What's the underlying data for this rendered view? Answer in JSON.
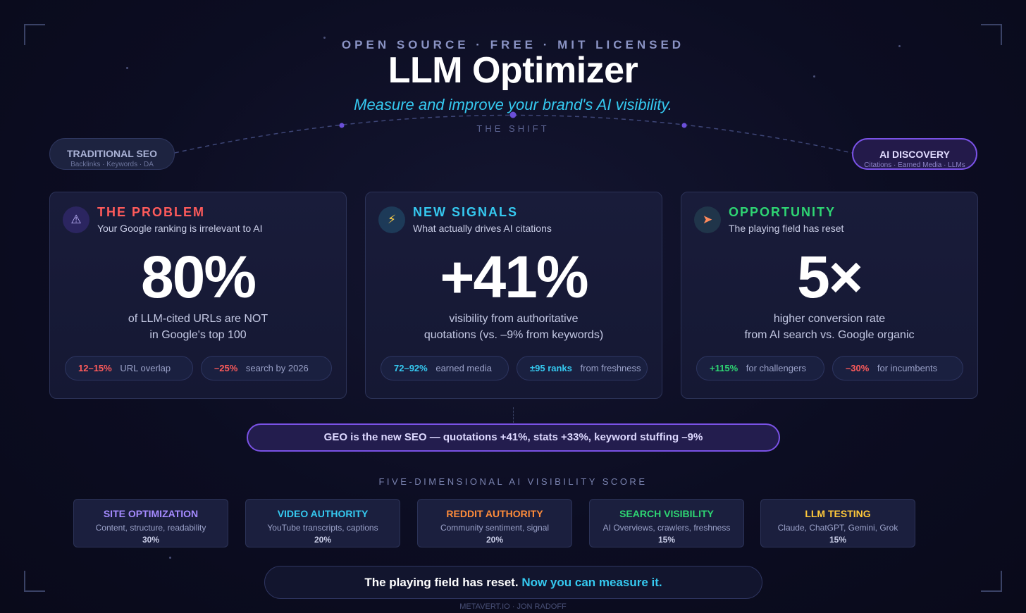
{
  "header": {
    "kicker": "OPEN SOURCE · FREE · MIT LICENSED",
    "title": "LLM Optimizer",
    "tagline": "Measure and improve your brand's AI visibility.",
    "shift_label": "THE SHIFT"
  },
  "shift": {
    "from": {
      "title": "TRADITIONAL SEO",
      "subtitle": "Backlinks · Keywords · DA"
    },
    "to": {
      "title": "AI DISCOVERY",
      "subtitle": "Citations · Earned Media · LLMs"
    }
  },
  "cards": [
    {
      "icon": "warning-icon",
      "label": "THE PROBLEM",
      "subtitle": "Your Google ranking is irrelevant to AI",
      "big_stat": "80%",
      "desc_line1": "of LLM-cited URLs are NOT",
      "desc_line2": "in Google's top 100",
      "chips": [
        {
          "value": "12–15%",
          "text": "URL overlap"
        },
        {
          "value": "–25%",
          "text": "search by 2026"
        }
      ]
    },
    {
      "icon": "lightning-icon",
      "label": "NEW SIGNALS",
      "subtitle": "What actually drives AI citations",
      "big_stat": "+41%",
      "desc_line1": "visibility from authoritative",
      "desc_line2": "quotations (vs. –9% from keywords)",
      "chips": [
        {
          "value": "72–92%",
          "text": "earned media"
        },
        {
          "value": "±95 ranks",
          "text": "from freshness"
        }
      ]
    },
    {
      "icon": "rocket-icon",
      "label": "OPPORTUNITY",
      "subtitle": "The playing field has reset",
      "big_stat": "5×",
      "desc_line1": "higher conversion rate",
      "desc_line2": "from AI search vs. Google organic",
      "chips": [
        {
          "value": "+115%",
          "text": "for challengers"
        },
        {
          "value": "–30%",
          "text": "for incumbents"
        }
      ]
    }
  ],
  "geo_banner": "GEO is the new SEO — quotations +41%, stats +33%, keyword stuffing –9%",
  "dimensions": {
    "heading": "FIVE-DIMENSIONAL AI VISIBILITY SCORE",
    "items": [
      {
        "name": "SITE OPTIMIZATION",
        "desc": "Content, structure, readability",
        "weight": "30%",
        "color": "#a58bff"
      },
      {
        "name": "VIDEO AUTHORITY",
        "desc": "YouTube transcripts, captions",
        "weight": "20%",
        "color": "#35c9f0"
      },
      {
        "name": "REDDIT AUTHORITY",
        "desc": "Community sentiment, signal",
        "weight": "20%",
        "color": "#ff8c3a"
      },
      {
        "name": "SEARCH VISIBILITY",
        "desc": "AI Overviews, crawlers, freshness",
        "weight": "15%",
        "color": "#2ed573"
      },
      {
        "name": "LLM TESTING",
        "desc": "Claude, ChatGPT, Gemini, Grok",
        "weight": "15%",
        "color": "#ffc93a"
      }
    ]
  },
  "footer": {
    "pre": "The playing field has reset.",
    "highlight": "Now you can measure it.",
    "credit": "METAVERT.IO · JON RADOFF"
  },
  "colors": {
    "background": "#0c0d22",
    "accent_cyan": "#35c9f0",
    "accent_purple": "#7a52e6",
    "problem_red": "#ff5b5b",
    "opportunity_green": "#2ed573"
  }
}
